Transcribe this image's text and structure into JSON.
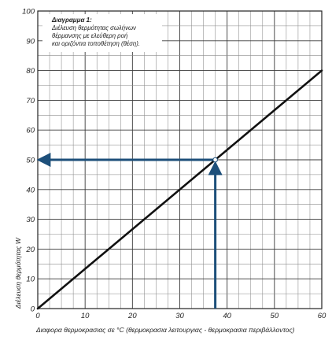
{
  "chart_data": {
    "type": "line",
    "title": "",
    "xlabel": "Διαφορα θερμοκρασιας σε °C (θερμοκρασια λειτουργιας - θερμοκρασια περιβάλλοντος)",
    "ylabel": "Διέλευση θερμότητας W",
    "xlim": [
      0,
      60
    ],
    "ylim": [
      0,
      100
    ],
    "x_ticks": [
      0,
      10,
      20,
      30,
      40,
      50,
      60
    ],
    "y_ticks": [
      0,
      10,
      20,
      30,
      40,
      50,
      60,
      70,
      80,
      90,
      100
    ],
    "x_minor_step": 2.5,
    "y_minor_step": 5,
    "grid": true,
    "series": [
      {
        "x": [
          0,
          60
        ],
        "y": [
          0,
          80
        ],
        "color": "#111111"
      }
    ],
    "annotation": {
      "title": "Διαγραμμα 1:",
      "lines": [
        "Διέλευση θερμότητας σωλήνων",
        "θέρμανσης με ελεύθερη ροή",
        "και οριζόντια τοποθέτηση (θέση)."
      ]
    },
    "readout": {
      "x": 37.5,
      "y": 50,
      "color": "#1d4f7a"
    }
  }
}
